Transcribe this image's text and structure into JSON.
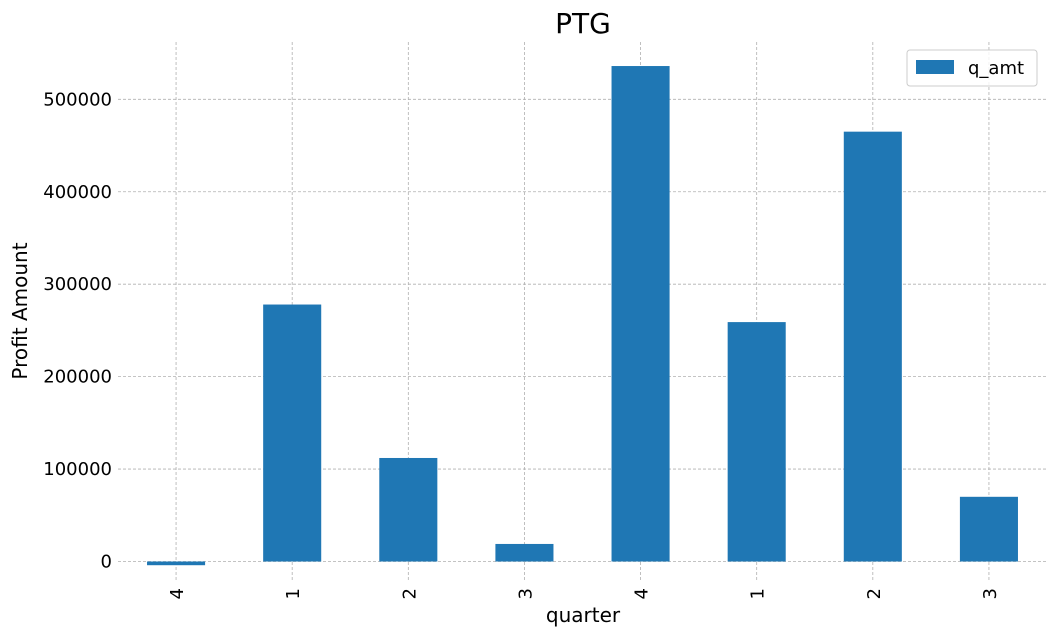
{
  "chart_data": {
    "type": "bar",
    "title": "PTG",
    "xlabel": "quarter",
    "ylabel": "Profit Amount",
    "categories": [
      "4",
      "1",
      "2",
      "3",
      "4",
      "1",
      "2",
      "3"
    ],
    "series": [
      {
        "name": "q_amt",
        "values": [
          -4000,
          278000,
          112000,
          19000,
          536000,
          259000,
          465000,
          70000
        ]
      }
    ],
    "ylim": [
      -20000,
      562000
    ],
    "yticks": [
      0,
      100000,
      200000,
      300000,
      400000,
      500000
    ],
    "ytick_labels": [
      "0",
      "100000",
      "200000",
      "300000",
      "400000",
      "500000"
    ],
    "grid": true,
    "legend": "top-right",
    "bar_color": "#1f77b4",
    "xtick_rotation": "vertical"
  }
}
